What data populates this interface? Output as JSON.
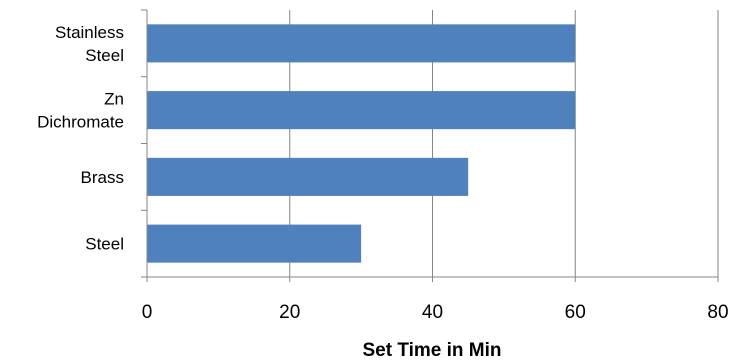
{
  "chart_data": {
    "type": "bar",
    "orientation": "horizontal",
    "categories": [
      [
        "Stainless",
        "Steel"
      ],
      [
        "Zn",
        "Dichromate"
      ],
      [
        "Brass"
      ],
      [
        "Steel"
      ]
    ],
    "values": [
      60,
      60,
      45,
      30
    ],
    "xlabel": "Set Time in Min",
    "xlim": [
      0,
      80
    ],
    "xticks": [
      "0",
      "20",
      "40",
      "60",
      "80"
    ],
    "grid": "vertical",
    "legend": "none",
    "bar_color": "#4F81BD",
    "grid_color": "#868686"
  }
}
